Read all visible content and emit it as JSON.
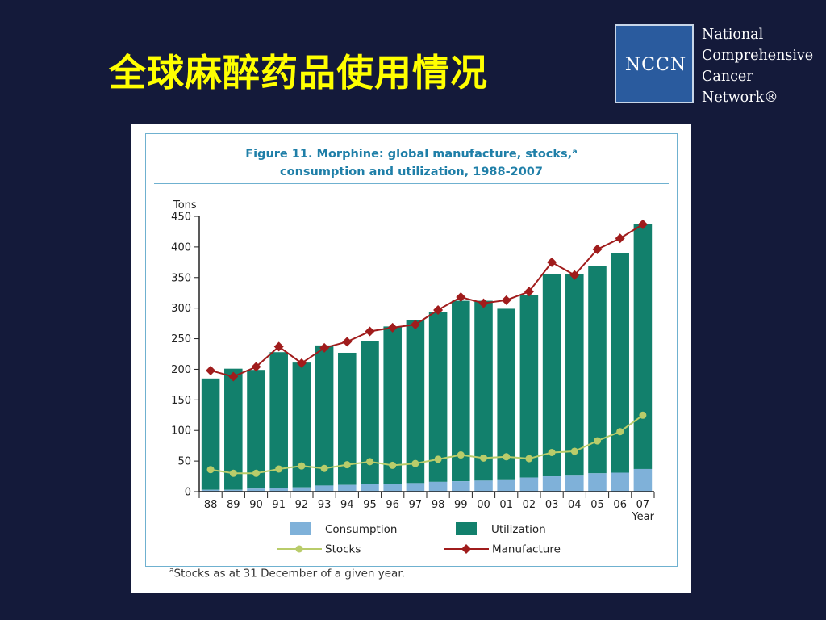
{
  "slide": {
    "title": "全球麻醉药品使用情况"
  },
  "logo": {
    "abbr": "NCCN",
    "lines": [
      "National",
      "Comprehensive",
      "Cancer",
      "Network®"
    ]
  },
  "figure": {
    "title_line1": "Figure 11.   Morphine: global manufacture, stocks,ᵃ",
    "title_line2": "consumption and utilization, 1988-2007",
    "footnote_mark": "a",
    "footnote": "Stocks as at 31 December of a given year."
  },
  "colors": {
    "background": "#141a3a",
    "title": "#ffff00",
    "consumption": "#7fb1d9",
    "utilization": "#12806c",
    "stocks": "#b9cc6a",
    "manufacture": "#a01c1c"
  },
  "chart_data": {
    "type": "bar",
    "ylabel": "Tons",
    "xlabel": "Year",
    "ylim": [
      0,
      450
    ],
    "yticks": [
      0,
      50,
      100,
      150,
      200,
      250,
      300,
      350,
      400,
      450
    ],
    "categories": [
      "88",
      "89",
      "90",
      "91",
      "92",
      "93",
      "94",
      "95",
      "96",
      "97",
      "98",
      "99",
      "00",
      "01",
      "02",
      "03",
      "04",
      "05",
      "06",
      "07"
    ],
    "series": [
      {
        "name": "Consumption",
        "kind": "bar",
        "values": [
          3,
          3,
          5,
          6,
          7,
          10,
          11,
          12,
          13,
          14,
          16,
          17,
          18,
          20,
          23,
          25,
          26,
          30,
          31,
          37
        ]
      },
      {
        "name": "Utilization",
        "kind": "bar",
        "values": [
          185,
          201,
          199,
          228,
          211,
          239,
          227,
          246,
          270,
          280,
          294,
          312,
          312,
          299,
          322,
          356,
          355,
          369,
          390,
          438
        ]
      },
      {
        "name": "Stocks",
        "kind": "line",
        "values": [
          36,
          30,
          30,
          37,
          42,
          38,
          44,
          49,
          43,
          46,
          53,
          60,
          55,
          57,
          54,
          64,
          66,
          83,
          98,
          125
        ]
      },
      {
        "name": "Manufacture",
        "kind": "line",
        "values": [
          198,
          188,
          204,
          237,
          210,
          235,
          245,
          262,
          268,
          273,
          297,
          318,
          308,
          313,
          327,
          375,
          354,
          396,
          414,
          437
        ]
      }
    ],
    "legend": {
      "position": "bottom",
      "items": [
        "Consumption",
        "Utilization",
        "Stocks",
        "Manufacture"
      ]
    }
  }
}
